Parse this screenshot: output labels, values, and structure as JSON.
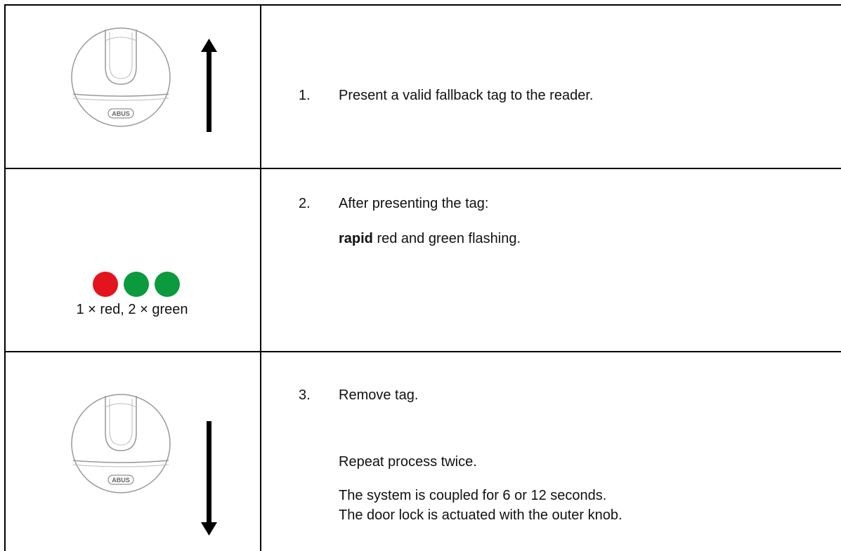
{
  "rows": [
    {
      "device_label": "ABUS",
      "step_number": "1.",
      "text": "Present a valid fallback tag to the reader."
    },
    {
      "caption": "1 × red, 2 × green",
      "step_number": "2.",
      "text": "After presenting the tag:",
      "emphasis": "rapid",
      "text_continued": " red and green flashing."
    },
    {
      "device_label": "ABUS",
      "step_number": "3.",
      "text": "Remove tag.",
      "notes": [
        "Repeat process twice.",
        "The system is coupled for 6 or 12 seconds.",
        "The door lock is actuated with the outer knob."
      ]
    }
  ]
}
